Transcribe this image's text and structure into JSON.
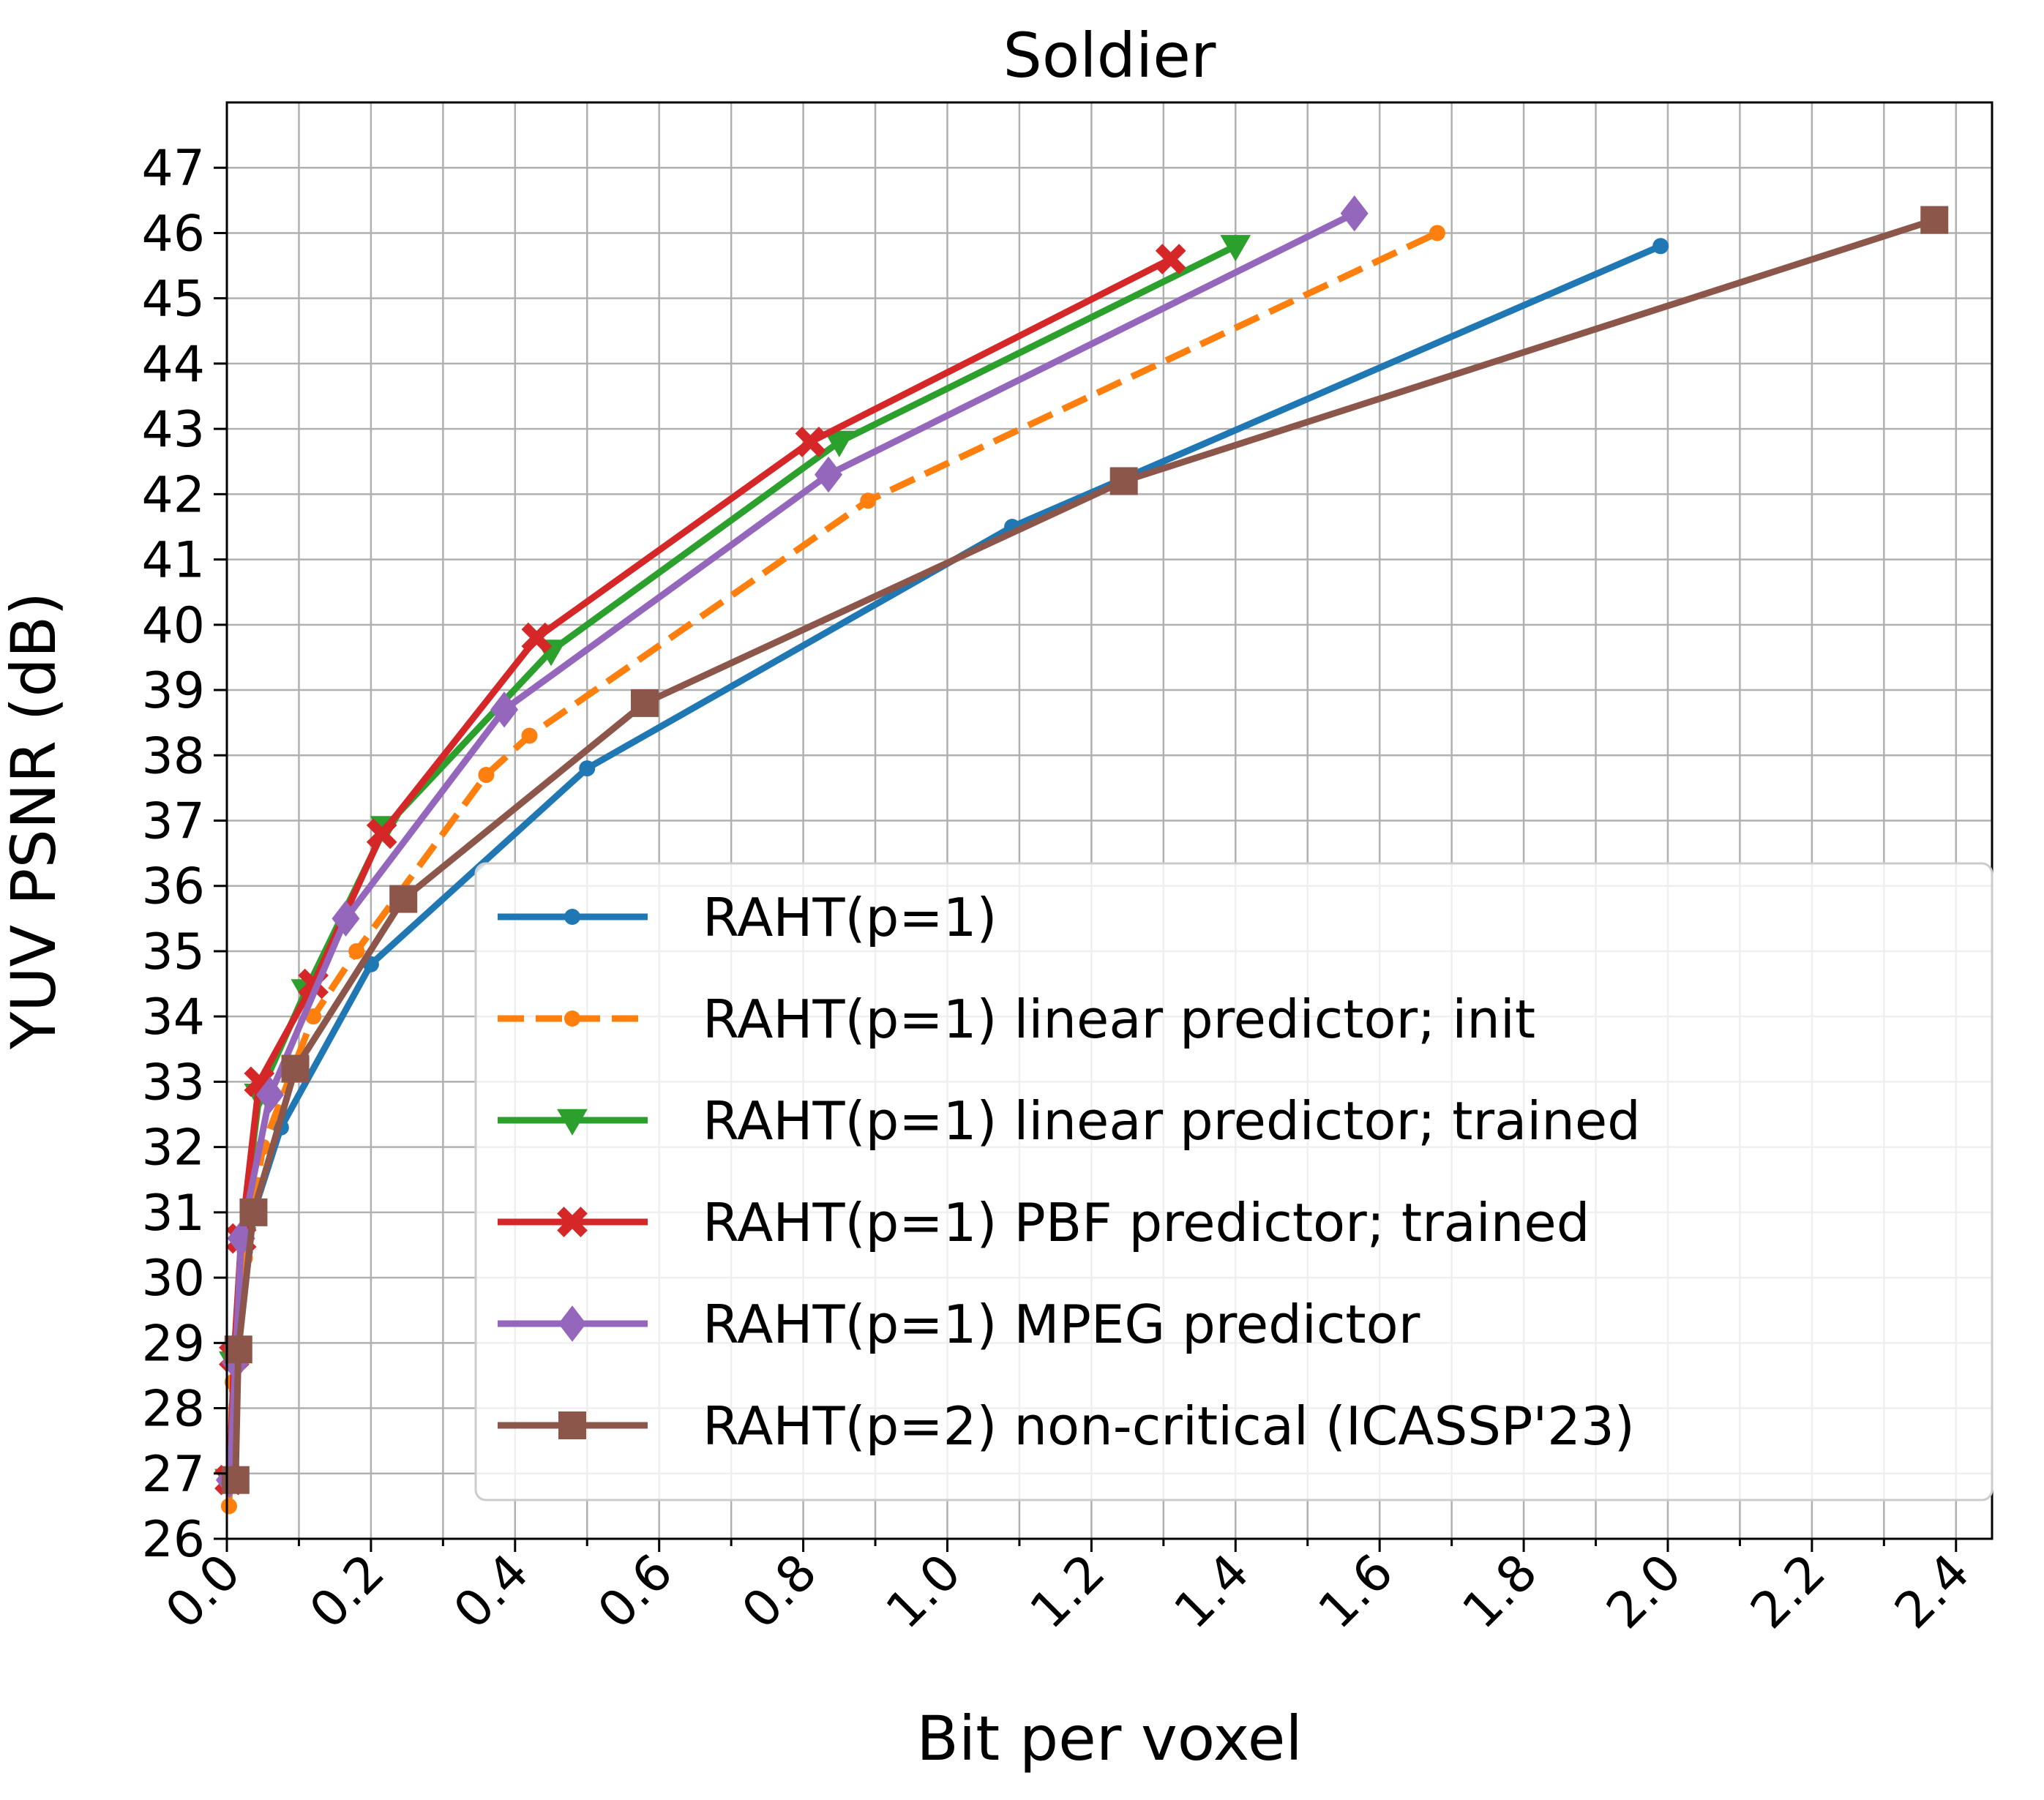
{
  "chart_data": {
    "type": "line",
    "title": "Soldier",
    "xlabel": "Bit per voxel",
    "ylabel": "YUV PSNR (dB)",
    "xlim": [
      0.0,
      2.45
    ],
    "ylim": [
      26,
      48
    ],
    "xticks": [
      "0.0",
      "0.2",
      "0.4",
      "0.6",
      "0.8",
      "1.0",
      "1.2",
      "1.4",
      "1.6",
      "1.8",
      "2.0",
      "2.2",
      "2.4"
    ],
    "yticks": [
      "26",
      "27",
      "28",
      "29",
      "30",
      "31",
      "32",
      "33",
      "34",
      "35",
      "36",
      "37",
      "38",
      "39",
      "40",
      "41",
      "42",
      "43",
      "44",
      "45",
      "46",
      "47"
    ],
    "grid": true,
    "legend_position": "lower-right",
    "series": [
      {
        "name": "RAHT(p=1)",
        "color": "#1f77b4",
        "marker": "circle",
        "dash": "solid",
        "x": [
          0.004,
          0.012,
          0.025,
          0.04,
          0.075,
          0.2,
          0.5,
          1.09,
          1.99
        ],
        "y": [
          26.8,
          28.7,
          30.4,
          31.1,
          32.3,
          34.8,
          37.8,
          41.5,
          45.8
        ]
      },
      {
        "name": "RAHT(p=1) linear predictor; init",
        "color": "#ff7f0e",
        "marker": "circle",
        "dash": "dashed",
        "x": [
          0.003,
          0.008,
          0.025,
          0.05,
          0.12,
          0.18,
          0.36,
          0.42,
          0.89,
          1.68
        ],
        "y": [
          26.5,
          28.4,
          30.3,
          32.0,
          34.0,
          35.0,
          37.7,
          38.3,
          41.9,
          46.0
        ]
      },
      {
        "name": "RAHT(p=1) linear predictor; trained",
        "color": "#2ca02c",
        "marker": "triangle-down",
        "dash": "solid",
        "x": [
          0.004,
          0.01,
          0.02,
          0.045,
          0.11,
          0.22,
          0.45,
          0.85,
          1.4
        ],
        "y": [
          26.9,
          28.7,
          30.6,
          32.8,
          34.4,
          36.9,
          39.6,
          42.8,
          45.8
        ]
      },
      {
        "name": "RAHT(p=1) PBF predictor; trained",
        "color": "#d62728",
        "marker": "x",
        "dash": "solid",
        "x": [
          0.004,
          0.01,
          0.02,
          0.045,
          0.12,
          0.215,
          0.43,
          0.81,
          1.31
        ],
        "y": [
          26.9,
          28.8,
          30.6,
          33.0,
          34.5,
          36.8,
          39.8,
          42.8,
          45.6
        ]
      },
      {
        "name": "RAHT(p=1) MPEG predictor",
        "color": "#9467bd",
        "marker": "diamond",
        "dash": "solid",
        "x": [
          0.004,
          0.012,
          0.02,
          0.06,
          0.165,
          0.385,
          0.835,
          1.565
        ],
        "y": [
          26.9,
          28.7,
          30.6,
          32.8,
          35.5,
          38.7,
          42.3,
          46.3
        ]
      },
      {
        "name": "RAHT(p=2) non-critical (ICASSP'23)",
        "color": "#8c564b",
        "marker": "square",
        "dash": "solid",
        "x": [
          0.012,
          0.016,
          0.037,
          0.095,
          0.245,
          0.58,
          1.245,
          2.37
        ],
        "y": [
          26.9,
          28.9,
          31.0,
          33.2,
          35.8,
          38.8,
          42.2,
          46.2
        ]
      }
    ]
  }
}
